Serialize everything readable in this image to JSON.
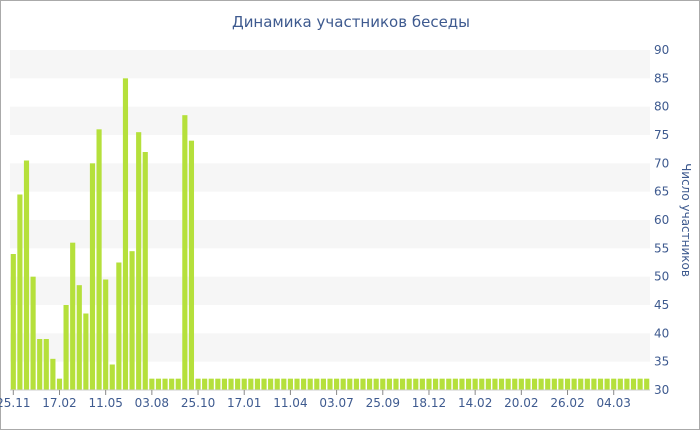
{
  "chart_data": {
    "type": "bar",
    "title": "Динамика участников беседы",
    "xlabel": "",
    "ylabel": "Число участников",
    "ylim": [
      30,
      90
    ],
    "yticks": [
      30,
      35,
      40,
      45,
      50,
      55,
      60,
      65,
      70,
      75,
      80,
      85,
      90
    ],
    "y_axis_side": "right",
    "grid": "alternating horizontal bands",
    "bar_color": "#b5e03b",
    "band_color": "#f6f6f6",
    "text_color": "#3e5a8f",
    "xtick_labels": [
      {
        "index": 0,
        "label": "25.11"
      },
      {
        "index": 7,
        "label": "17.02"
      },
      {
        "index": 14,
        "label": "11.05"
      },
      {
        "index": 21,
        "label": "03.08"
      },
      {
        "index": 28,
        "label": "25.10"
      },
      {
        "index": 35,
        "label": "17.01"
      },
      {
        "index": 42,
        "label": "11.04"
      },
      {
        "index": 49,
        "label": "03.07"
      },
      {
        "index": 56,
        "label": "25.09"
      },
      {
        "index": 63,
        "label": "18.12"
      },
      {
        "index": 70,
        "label": "14.02"
      },
      {
        "index": 77,
        "label": "20.02"
      },
      {
        "index": 84,
        "label": "26.02"
      },
      {
        "index": 91,
        "label": "04.03"
      }
    ],
    "values": [
      54,
      64.5,
      70.5,
      50,
      39,
      39,
      35.5,
      32,
      45,
      56,
      48.5,
      43.5,
      70,
      76,
      49.5,
      34.5,
      52.5,
      85,
      54.5,
      75.5,
      72,
      32,
      32,
      32,
      32,
      32,
      78.5,
      74,
      32,
      32,
      32,
      32,
      32,
      32,
      32,
      32,
      32,
      32,
      32,
      32,
      32,
      32,
      32,
      32,
      32,
      32,
      32,
      32,
      32,
      32,
      32,
      32,
      32,
      32,
      32,
      32,
      32,
      32,
      32,
      32,
      32,
      32,
      32,
      32,
      32,
      32,
      32,
      32,
      32,
      32,
      32,
      32,
      32,
      32,
      32,
      32,
      32,
      32,
      32,
      32,
      32,
      32,
      32,
      32,
      32,
      32,
      32,
      32,
      32,
      32,
      32,
      32,
      32,
      32,
      32,
      32,
      32
    ]
  }
}
